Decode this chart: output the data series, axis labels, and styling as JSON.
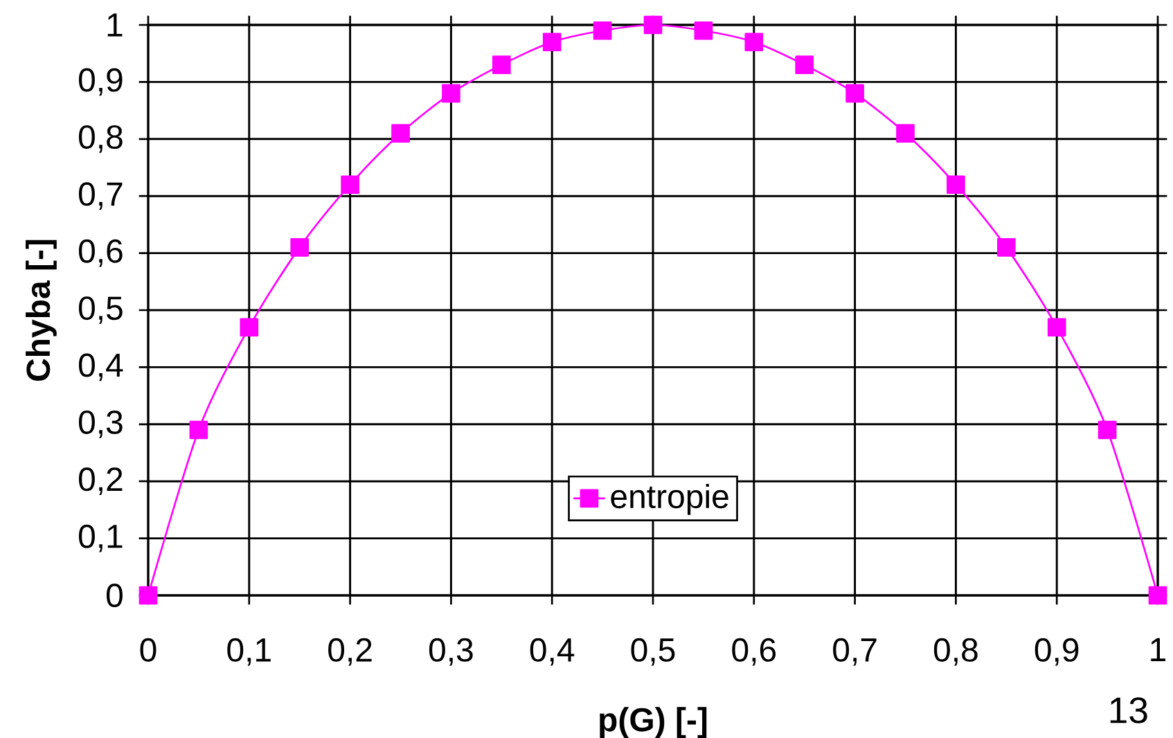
{
  "chart_data": {
    "type": "line",
    "xlabel": "p(G) [-]",
    "ylabel": "Chyba [-]",
    "x": [
      0,
      0.05,
      0.1,
      0.15,
      0.2,
      0.25,
      0.3,
      0.35,
      0.4,
      0.45,
      0.5,
      0.55,
      0.6,
      0.65,
      0.7,
      0.75,
      0.8,
      0.85,
      0.9,
      0.95,
      1
    ],
    "series": [
      {
        "name": "entropie",
        "color": "#ff00ff",
        "values": [
          0,
          0.29,
          0.47,
          0.61,
          0.72,
          0.81,
          0.88,
          0.93,
          0.97,
          0.99,
          1,
          0.99,
          0.97,
          0.93,
          0.88,
          0.81,
          0.72,
          0.61,
          0.47,
          0.29,
          0
        ]
      }
    ],
    "xlim": [
      0,
      1
    ],
    "ylim": [
      0,
      1
    ],
    "xticks": [
      0,
      {
        "value": 0.1,
        "label": "0,1"
      },
      {
        "value": 0.2,
        "label": "0,2"
      },
      {
        "value": 0.3,
        "label": "0,3"
      },
      {
        "value": 0.4,
        "label": "0,4"
      },
      {
        "value": 0.5,
        "label": "0,5"
      },
      {
        "value": 0.6,
        "label": "0,6"
      },
      {
        "value": 0.7,
        "label": "0,7"
      },
      {
        "value": 0.8,
        "label": "0,8"
      },
      {
        "value": 0.9,
        "label": "0,9"
      },
      1
    ],
    "yticks": [
      0,
      {
        "value": 0.1,
        "label": "0,1"
      },
      {
        "value": 0.2,
        "label": "0,2"
      },
      {
        "value": 0.3,
        "label": "0,3"
      },
      {
        "value": 0.4,
        "label": "0,4"
      },
      {
        "value": 0.5,
        "label": "0,5"
      },
      {
        "value": 0.6,
        "label": "0,6"
      },
      {
        "value": 0.7,
        "label": "0,7"
      },
      {
        "value": 0.8,
        "label": "0,8"
      },
      {
        "value": 0.9,
        "label": "0,9"
      },
      1
    ],
    "grid": true,
    "legend": "bottom",
    "marker": "square",
    "line_style": "solid",
    "annotations": [
      "13"
    ]
  }
}
